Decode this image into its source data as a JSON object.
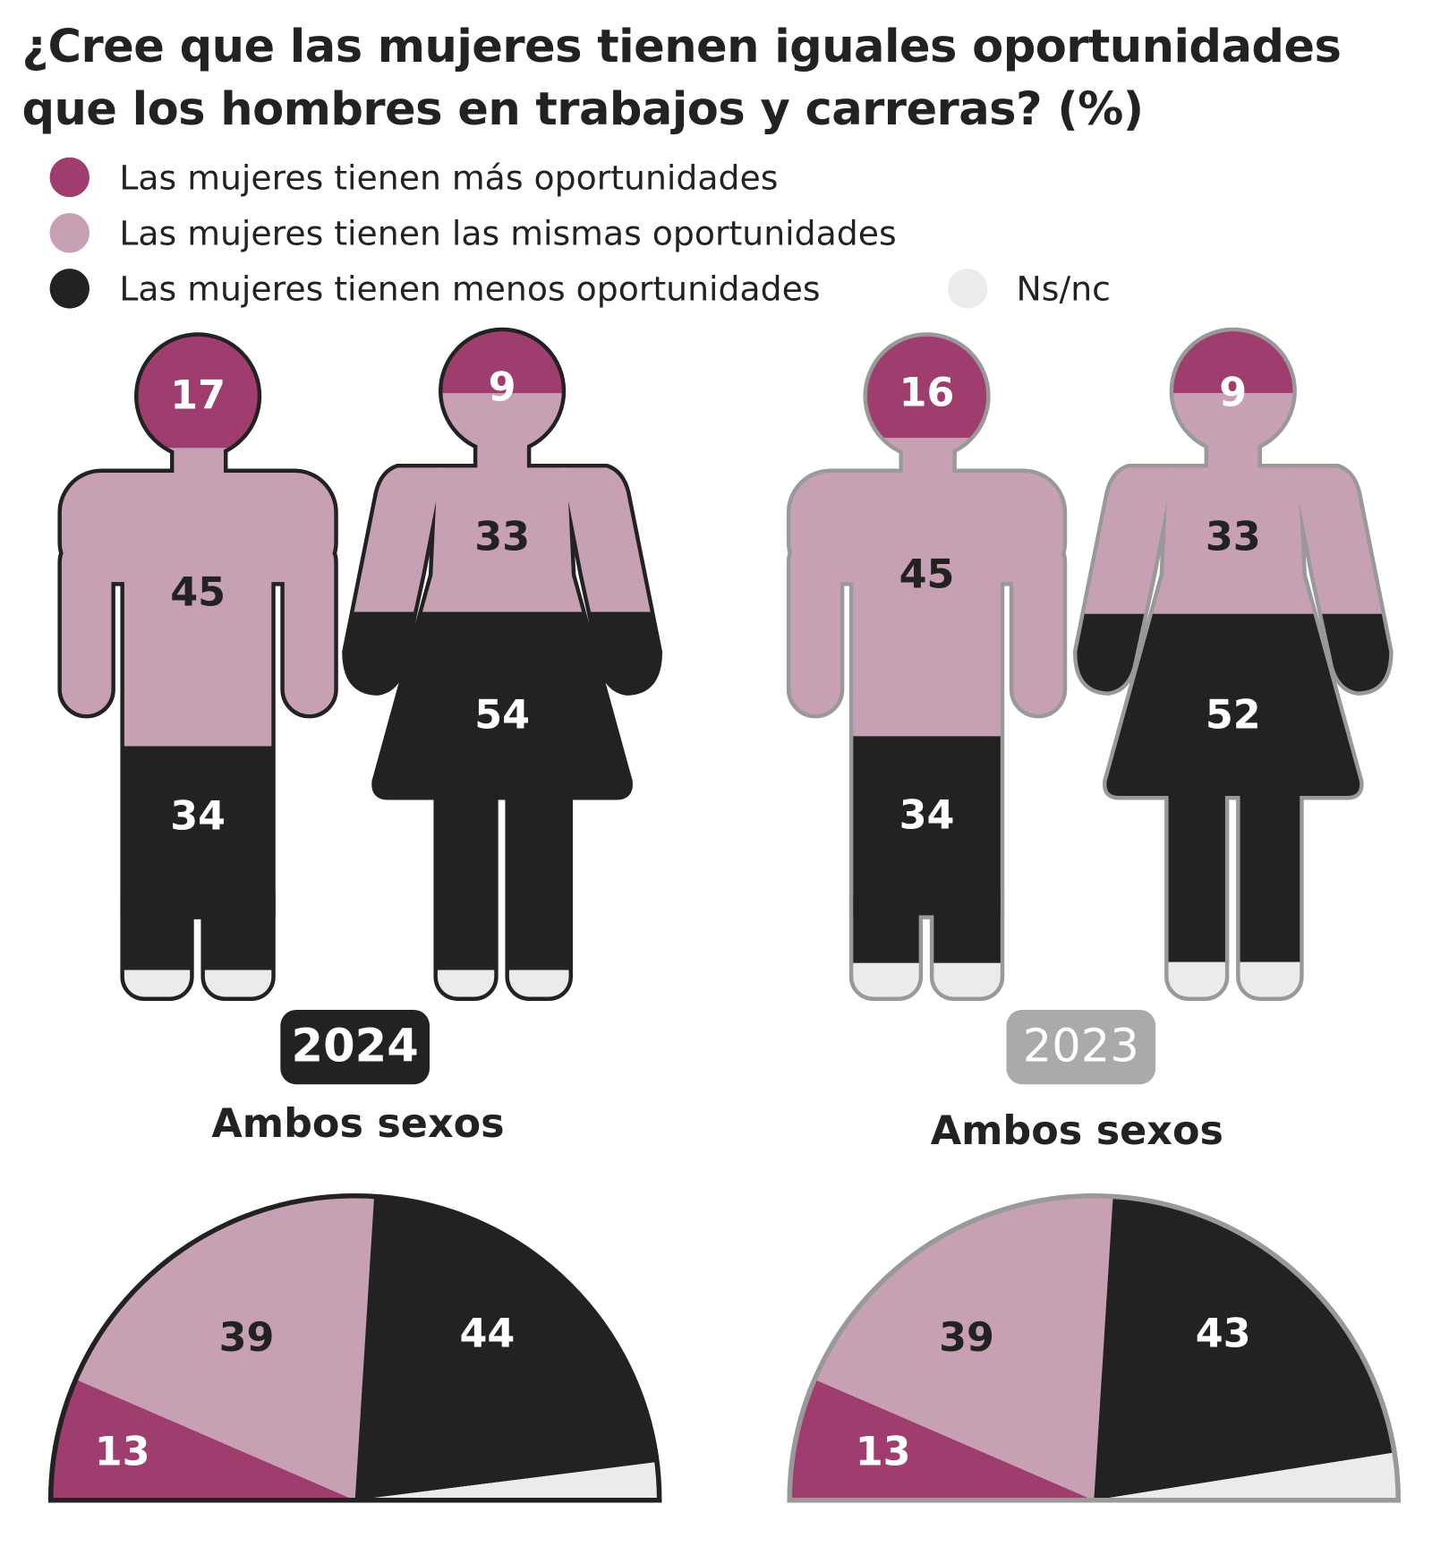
{
  "chart_data": {
    "type": "pictogram-and-half-pie",
    "title_line1": "¿Cree que las mujeres tienen iguales oportunidades",
    "title_line2": "que los hombres en trabajos y carreras? (%)",
    "legend": [
      {
        "label": "Las mujeres tienen más oportunidades",
        "color": "#9e3d6e"
      },
      {
        "label": "Las mujeres tienen las mismas oportunidades",
        "color": "#c7a0b3"
      },
      {
        "label": "Las mujeres tienen menos oportunidades",
        "color": "#222222"
      },
      {
        "label": "Ns/nc",
        "color": "#ebebeb"
      }
    ],
    "panels": [
      {
        "year": "2024",
        "outline_color": "#222222",
        "badge_color": "#222222",
        "men": {
          "mas": "17",
          "mismas": "45",
          "menos": "34"
        },
        "women": {
          "mas": "9",
          "mismas": "33",
          "menos": "54"
        },
        "both_label": "Ambos sexos",
        "both": {
          "mas": 13,
          "mismas": 39,
          "menos": 44
        }
      },
      {
        "year": "2023",
        "outline_color": "#999999",
        "badge_color": "#aaaaaa",
        "men": {
          "mas": "16",
          "mismas": "45",
          "menos": "34"
        },
        "women": {
          "mas": "9",
          "mismas": "33",
          "menos": "52"
        },
        "both_label": "Ambos sexos",
        "both": {
          "mas": 13,
          "mismas": 39,
          "menos": 43
        }
      }
    ]
  }
}
